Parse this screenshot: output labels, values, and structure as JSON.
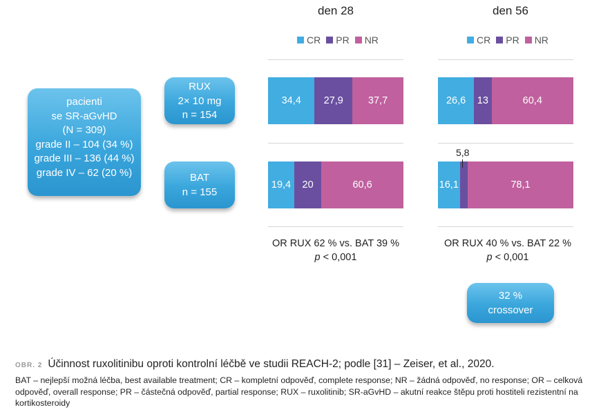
{
  "patients_box": [
    "pacienti",
    "se SR-aGvHD",
    "(N = 309)",
    "grade II – 104 (34 %)",
    "grade III – 136 (44 %)",
    "grade IV –  62 (20 %)"
  ],
  "rux_box": [
    "RUX",
    "2× 10 mg",
    "n = 154"
  ],
  "bat_box": [
    "BAT",
    "n = 155"
  ],
  "crossover_box": [
    "32 %",
    "crossover"
  ],
  "colors": {
    "CR": "#41ade1",
    "PR": "#6a4fa0",
    "NR": "#c0609e",
    "box": "#3aa6dc"
  },
  "chart_data": [
    {
      "type": "bar",
      "stacked": true,
      "orientation": "horizontal",
      "title": "den 28",
      "legend": [
        "CR",
        "PR",
        "NR"
      ],
      "categories": [
        "RUX",
        "BAT"
      ],
      "series": [
        {
          "name": "CR",
          "values": [
            34.4,
            19.4
          ],
          "labels": [
            "34,4",
            "19,4"
          ]
        },
        {
          "name": "PR",
          "values": [
            27.9,
            20
          ],
          "labels": [
            "27,9",
            "20"
          ]
        },
        {
          "name": "NR",
          "values": [
            37.7,
            60.6
          ],
          "labels": [
            "37,7",
            "60,6"
          ]
        }
      ],
      "stat_line1": "OR RUX 62 % vs. BAT 39 %",
      "stat_p": "p",
      "stat_rest": " < 0,001"
    },
    {
      "type": "bar",
      "stacked": true,
      "orientation": "horizontal",
      "title": "den 56",
      "legend": [
        "CR",
        "PR",
        "NR"
      ],
      "categories": [
        "RUX",
        "BAT"
      ],
      "series": [
        {
          "name": "CR",
          "values": [
            26.6,
            16.1
          ],
          "labels": [
            "26,6",
            "16,1"
          ]
        },
        {
          "name": "PR",
          "values": [
            13,
            5.8
          ],
          "labels": [
            "13",
            "5,8"
          ]
        },
        {
          "name": "NR",
          "values": [
            60.4,
            78.1
          ],
          "labels": [
            "60,4",
            "78,1"
          ]
        }
      ],
      "stat_line1": "OR RUX 40 % vs. BAT 22 %",
      "stat_p": "p",
      "stat_rest": " < 0,001"
    }
  ],
  "caption": {
    "label": "OBR. 2",
    "text": "Účinnost ruxolitinibu oproti kontrolní léčbě ve studii REACH-2; podle [31] – Zeiser, et al., 2020."
  },
  "footnote": "BAT – nejlepší možná léčba, best available treatment; CR – kompletní odpověď, complete response; NR – žádná odpověď, no response; OR – celková odpověď, overall response; PR – částečná odpověď, partial response; RUX – ruxolitinib; SR-aGvHD – akutní reakce štěpu proti hostiteli rezistentní na kortikosteroidy"
}
